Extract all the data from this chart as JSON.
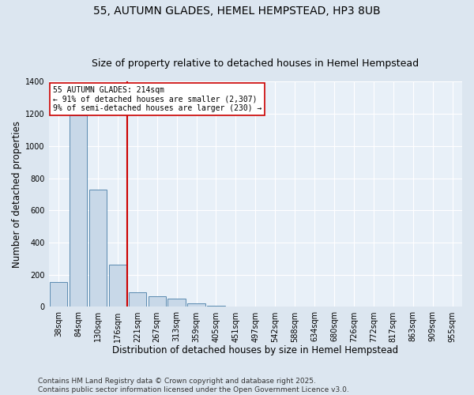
{
  "title_line1": "55, AUTUMN GLADES, HEMEL HEMPSTEAD, HP3 8UB",
  "title_line2": "Size of property relative to detached houses in Hemel Hempstead",
  "xlabel": "Distribution of detached houses by size in Hemel Hempstead",
  "ylabel": "Number of detached properties",
  "categories": [
    "38sqm",
    "84sqm",
    "130sqm",
    "176sqm",
    "221sqm",
    "267sqm",
    "313sqm",
    "359sqm",
    "405sqm",
    "451sqm",
    "497sqm",
    "542sqm",
    "588sqm",
    "634sqm",
    "680sqm",
    "726sqm",
    "772sqm",
    "817sqm",
    "863sqm",
    "909sqm",
    "955sqm"
  ],
  "values": [
    155,
    1190,
    730,
    265,
    90,
    65,
    50,
    20,
    5,
    0,
    0,
    0,
    0,
    0,
    0,
    0,
    0,
    0,
    0,
    0,
    0
  ],
  "bar_color": "#c8d8e8",
  "bar_edge_color": "#5a8ab0",
  "vline_index": 3.5,
  "vline_color": "#cc0000",
  "annotation_text": "55 AUTUMN GLADES: 214sqm\n← 91% of detached houses are smaller (2,307)\n9% of semi-detached houses are larger (230) →",
  "annotation_box_color": "#ffffff",
  "annotation_box_edge": "#cc0000",
  "ylim": [
    0,
    1400
  ],
  "yticks": [
    0,
    200,
    400,
    600,
    800,
    1000,
    1200,
    1400
  ],
  "bg_color": "#dce6f0",
  "plot_bg_color": "#e8f0f8",
  "footer_text": "Contains HM Land Registry data © Crown copyright and database right 2025.\nContains public sector information licensed under the Open Government Licence v3.0.",
  "title_fontsize": 10,
  "subtitle_fontsize": 9,
  "tick_fontsize": 7,
  "label_fontsize": 8.5,
  "footer_fontsize": 6.5
}
